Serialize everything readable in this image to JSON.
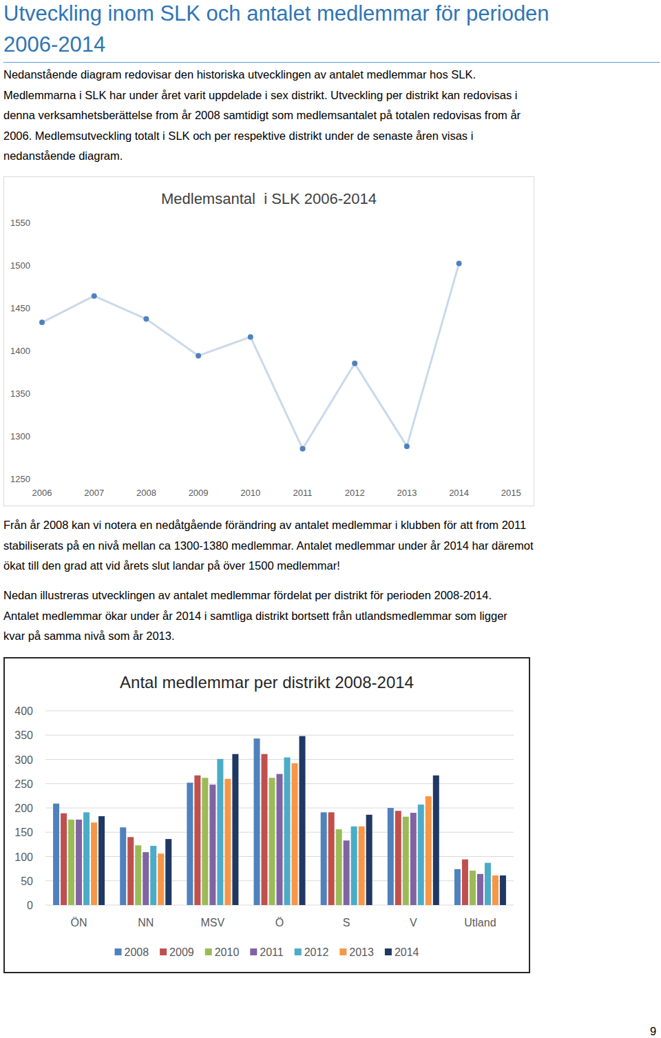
{
  "heading_lines": [
    "Utveckling inom SLK och antalet medlemmar för perioden",
    "2006-2014"
  ],
  "intro_lines": [
    "Nedanstående diagram redovisar den historiska utvecklingen av antalet medlemmar hos SLK.",
    "Medlemmarna i SLK har under året varit uppdelade i sex distrikt. Utveckling per distrikt kan redovisas i",
    "denna verksamhetsberättelse from år 2008 samtidigt som medlemsantalet på totalen redovisas from år",
    "2006. Medlemsutveckling totalt i SLK och per respektive distrikt under de senaste åren visas i",
    "nedanstående diagram."
  ],
  "middle_lines": [
    "Från år 2008 kan vi notera en nedåtgående förändring av antalet medlemmar i klubben för att from 2011",
    "stabiliserats på en nivå mellan ca 1300-1380 medlemmar. Antalet medlemmar under år 2014 har däremot",
    "ökat till den grad att vid årets slut landar på över 1500 medlemmar!"
  ],
  "district_intro_lines": [
    "Nedan illustreras utvecklingen av antalet medlemmar fördelat per distrikt för perioden 2008-2014.",
    "Antalet medlemmar ökar under år 2014 i samtliga distrikt bortsett från utlandsmedlemmar som ligger",
    "kvar på samma nivå som år 2013."
  ],
  "page_number": "9",
  "chart_data": [
    {
      "type": "line",
      "title": "Medlemsantal  i SLK 2006-2014",
      "categories": [
        "2006",
        "2007",
        "2008",
        "2009",
        "2010",
        "2011",
        "2012",
        "2013",
        "2014",
        "2015"
      ],
      "values": [
        1433,
        1464,
        1437,
        1394,
        1416,
        1285,
        1385,
        1288,
        1502,
        null
      ],
      "color": "#4f81bd",
      "marker": "circle",
      "ylim": [
        1250,
        1550
      ],
      "yticks": [
        1250,
        1300,
        1350,
        1400,
        1450,
        1500,
        1550
      ],
      "grid": false
    },
    {
      "type": "bar",
      "title": "Antal medlemmar per distrikt 2008-2014",
      "categories": [
        "ÖN",
        "NN",
        "MSV",
        "Ö",
        "S",
        "V",
        "Utland"
      ],
      "series": [
        {
          "name": "2008",
          "color": "#4f81bd",
          "values": [
            209,
            160,
            252,
            343,
            191,
            200,
            74
          ]
        },
        {
          "name": "2009",
          "color": "#c0504d",
          "values": [
            189,
            140,
            267,
            311,
            191,
            194,
            94
          ]
        },
        {
          "name": "2010",
          "color": "#9bbb59",
          "values": [
            176,
            123,
            262,
            262,
            156,
            182,
            71
          ]
        },
        {
          "name": "2011",
          "color": "#8064a2",
          "values": [
            176,
            109,
            248,
            270,
            133,
            190,
            64
          ]
        },
        {
          "name": "2012",
          "color": "#4bacc6",
          "values": [
            191,
            122,
            301,
            304,
            162,
            207,
            87
          ]
        },
        {
          "name": "2013",
          "color": "#f79646",
          "values": [
            170,
            106,
            260,
            292,
            162,
            224,
            61
          ]
        },
        {
          "name": "2014",
          "color": "#1f3864",
          "values": [
            183,
            136,
            311,
            348,
            186,
            267,
            61
          ]
        }
      ],
      "ylim": [
        0,
        400
      ],
      "yticks": [
        0,
        50,
        100,
        150,
        200,
        250,
        300,
        350,
        400
      ],
      "grid": true,
      "legend": "bottom"
    }
  ]
}
